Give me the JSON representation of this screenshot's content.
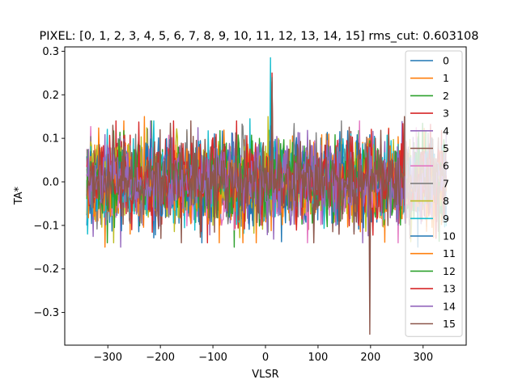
{
  "chart_data": {
    "type": "line",
    "title": "PIXEL: [0, 1, 2, 3, 4, 5, 6, 7, 8, 9, 10, 11, 12, 13, 14, 15]    rms_cut: 0.603108",
    "xlabel": "VLSR",
    "ylabel": "TA*",
    "xlim": [
      -382,
      382
    ],
    "ylim": [
      -0.375,
      0.31
    ],
    "x_range": [
      -340,
      345
    ],
    "x_ticks": [
      -300,
      -200,
      -100,
      0,
      100,
      200,
      300
    ],
    "x_tick_labels": [
      "−300",
      "−200",
      "−100",
      "0",
      "100",
      "200",
      "300"
    ],
    "y_ticks": [
      -0.3,
      -0.2,
      -0.1,
      0.0,
      0.1,
      0.2,
      0.3
    ],
    "y_tick_labels": [
      "−0.3",
      "−0.2",
      "−0.1",
      "0.0",
      "0.1",
      "0.2",
      "0.3"
    ],
    "grid": false,
    "legend_position": "top-right",
    "series": [
      {
        "name": "0",
        "color": "#1f77b4",
        "noise": 0.045,
        "features": [
          [
            -345,
            -0.1
          ],
          [
            290,
            -0.15
          ],
          [
            12,
            0.06
          ]
        ]
      },
      {
        "name": "1",
        "color": "#ff7f0e",
        "noise": 0.045,
        "features": [
          [
            -305,
            -0.15
          ],
          [
            -230,
            0.15
          ],
          [
            12,
            0.08
          ]
        ]
      },
      {
        "name": "2",
        "color": "#2ca02c",
        "noise": 0.045,
        "features": [
          [
            -60,
            -0.15
          ],
          [
            12,
            0.1
          ]
        ]
      },
      {
        "name": "3",
        "color": "#d62728",
        "noise": 0.045,
        "features": [
          [
            -110,
            -0.14
          ],
          [
            -285,
            0.14
          ],
          [
            12,
            0.23
          ]
        ]
      },
      {
        "name": "4",
        "color": "#9467bd",
        "noise": 0.045,
        "features": [
          [
            -275,
            -0.15
          ],
          [
            185,
            -0.14
          ],
          [
            12,
            0.07
          ]
        ]
      },
      {
        "name": "5",
        "color": "#8c564b",
        "noise": 0.045,
        "features": [
          [
            -200,
            0.12
          ],
          [
            12,
            0.1
          ]
        ]
      },
      {
        "name": "6",
        "color": "#e377c2",
        "noise": 0.045,
        "features": [
          [
            80,
            -0.14
          ],
          [
            12,
            0.06
          ]
        ]
      },
      {
        "name": "7",
        "color": "#7f7f7f",
        "noise": 0.045,
        "features": [
          [
            -150,
            0.12
          ],
          [
            12,
            0.1
          ]
        ]
      },
      {
        "name": "8",
        "color": "#bcbd22",
        "noise": 0.045,
        "features": [
          [
            5,
            0.15
          ],
          [
            12,
            0.2
          ]
        ]
      },
      {
        "name": "9",
        "color": "#17becf",
        "noise": 0.045,
        "features": [
          [
            10,
            0.285
          ],
          [
            -30,
            0.145
          ],
          [
            -338,
            -0.12
          ]
        ]
      },
      {
        "name": "10",
        "color": "#1f77b4",
        "noise": 0.045,
        "features": [
          [
            12,
            0.05
          ]
        ]
      },
      {
        "name": "11",
        "color": "#ff7f0e",
        "noise": 0.045,
        "features": [
          [
            12,
            0.05
          ]
        ]
      },
      {
        "name": "12",
        "color": "#2ca02c",
        "noise": 0.045,
        "features": [
          [
            12,
            0.05
          ]
        ]
      },
      {
        "name": "13",
        "color": "#d62728",
        "noise": 0.045,
        "features": [
          [
            12,
            0.25
          ],
          [
            -175,
            0.14
          ]
        ]
      },
      {
        "name": "14",
        "color": "#9467bd",
        "noise": 0.045,
        "features": [
          [
            12,
            0.08
          ]
        ]
      },
      {
        "name": "15",
        "color": "#8c564b",
        "noise": 0.045,
        "features": [
          [
            198,
            -0.35
          ],
          [
            12,
            0.24
          ],
          [
            -290,
            0.13
          ],
          [
            265,
            0.15
          ]
        ]
      }
    ]
  }
}
